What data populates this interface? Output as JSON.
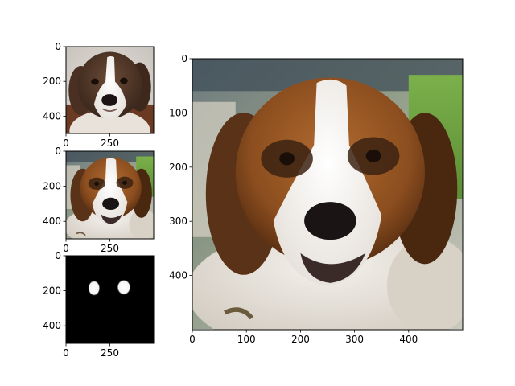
{
  "chart_data": [
    {
      "type": "image",
      "content": "puppy photo",
      "xlim": [
        0,
        500
      ],
      "ylim": [
        500,
        0
      ],
      "xticks": [
        0,
        250
      ],
      "yticks": [
        0,
        200,
        400
      ],
      "xticklabels": [
        "0",
        "250"
      ],
      "yticklabels": [
        "0",
        "200",
        "400"
      ]
    },
    {
      "type": "image",
      "content": "adult dog photo (downscaled)",
      "xlim": [
        0,
        500
      ],
      "ylim": [
        500,
        0
      ],
      "xticks": [
        0,
        250
      ],
      "yticks": [
        0,
        200,
        400
      ],
      "xticklabels": [
        "0",
        "250"
      ],
      "yticklabels": [
        "0",
        "200",
        "400"
      ]
    },
    {
      "type": "heatmap",
      "content": "binary mask with two eye blobs",
      "xlim": [
        0,
        500
      ],
      "ylim": [
        500,
        0
      ],
      "xticks": [
        0,
        250
      ],
      "yticks": [
        0,
        200,
        400
      ],
      "xticklabels": [
        "0",
        "250"
      ],
      "yticklabels": [
        "0",
        "200",
        "400"
      ],
      "blobs": [
        {
          "x": 160,
          "y": 185,
          "rx": 35,
          "ry": 45
        },
        {
          "x": 330,
          "y": 180,
          "rx": 40,
          "ry": 45
        }
      ]
    },
    {
      "type": "image",
      "content": "adult dog photo (full size)",
      "xlim": [
        0,
        500
      ],
      "ylim": [
        500,
        0
      ],
      "xticks": [
        0,
        100,
        200,
        300,
        400
      ],
      "yticks": [
        0,
        100,
        200,
        300,
        400
      ],
      "xticklabels": [
        "0",
        "100",
        "200",
        "300",
        "400"
      ],
      "yticklabels": [
        "0",
        "100",
        "200",
        "300",
        "400"
      ]
    }
  ]
}
